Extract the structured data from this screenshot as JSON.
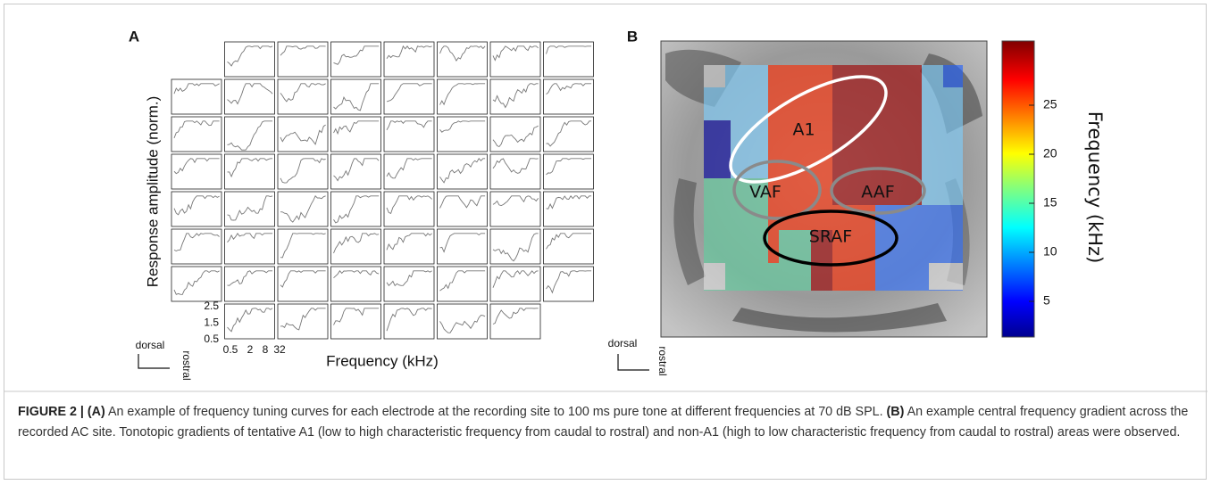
{
  "panel_a": {
    "label": "A",
    "ylabel": "Response amplitude (norm.)",
    "xlabel": "Frequency (kHz)",
    "yticks": [
      "2.5",
      "1.5",
      "0.5"
    ],
    "xticks": [
      "0.5",
      "2",
      "8",
      "32"
    ],
    "orientation": {
      "vertical": "dorsal",
      "horizontal": "rostral"
    }
  },
  "panel_b": {
    "label": "B",
    "regions": [
      "A1",
      "VAF",
      "AAF",
      "SRAF"
    ],
    "colorbar": {
      "label": "Frequency (kHz)",
      "ticks": [
        "25",
        "20",
        "15",
        "10",
        "5"
      ]
    },
    "orientation": {
      "vertical": "dorsal",
      "horizontal": "rostral"
    }
  },
  "caption": {
    "figure": "FIGURE 2 |",
    "a_label": "(A)",
    "a_text": "An example of frequency tuning curves for each electrode at the recording site to 100 ms pure tone at different frequencies at 70 dB SPL.",
    "b_label": "(B)",
    "b_text": "An example central frequency gradient across the recorded AC site. Tonotopic gradients of tentative A1 (low to high characteristic frequency from caudal to rostral) and non-A1 (high to low characteristic frequency from caudal to rostral) areas were observed."
  }
}
